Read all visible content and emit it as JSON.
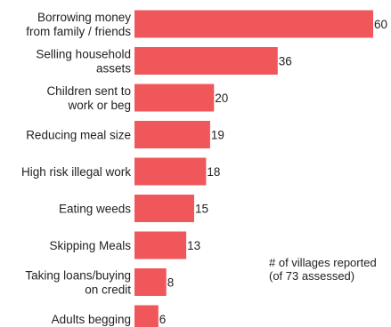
{
  "chart_data": {
    "type": "bar",
    "orientation": "horizontal",
    "categories": [
      [
        "Borrowing money",
        "from family / friends"
      ],
      [
        "Selling household",
        "assets"
      ],
      [
        "Children sent to",
        "work or beg"
      ],
      [
        "Reducing meal size"
      ],
      [
        "High risk illegal work"
      ],
      [
        "Eating weeds"
      ],
      [
        "Skipping Meals"
      ],
      [
        "Taking loans/buying",
        "on credit"
      ],
      [
        "Adults begging"
      ]
    ],
    "values": [
      60,
      36,
      20,
      19,
      18,
      15,
      13,
      8,
      6
    ],
    "value_labels": [
      "60",
      "36",
      "20",
      "19",
      "18",
      "15",
      "13",
      "8",
      "6"
    ],
    "xlim": [
      0,
      60
    ],
    "bar_color": "#f0575a",
    "grid": false,
    "title": "",
    "xlabel": "",
    "ylabel": ""
  },
  "annotation": {
    "line1": "# of villages reported",
    "line2": "(of 73 assessed)"
  }
}
